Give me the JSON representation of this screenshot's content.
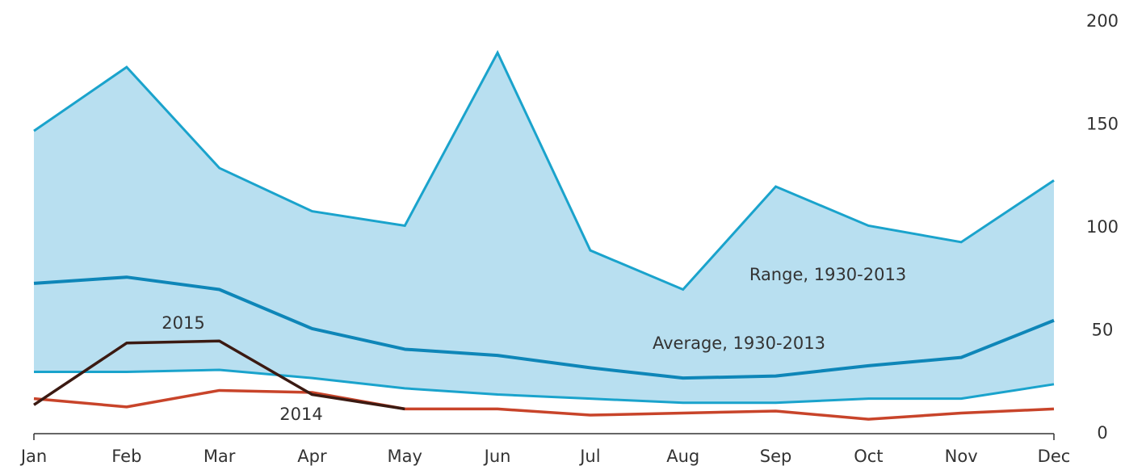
{
  "chart_data": {
    "type": "line",
    "categories": [
      "Jan",
      "Feb",
      "Mar",
      "Apr",
      "May",
      "Jun",
      "Jul",
      "Aug",
      "Sep",
      "Oct",
      "Nov",
      "Dec"
    ],
    "ylim": [
      0,
      200
    ],
    "yticks": [
      0,
      50,
      100,
      150,
      200
    ],
    "series": [
      {
        "name": "Range, 1930-2013",
        "color": "#1aa3cc",
        "fill": "#b8dff0",
        "high": [
          147,
          178,
          129,
          108,
          101,
          185,
          89,
          70,
          120,
          101,
          93,
          123
        ],
        "low": [
          30,
          30,
          31,
          27,
          22,
          19,
          17,
          15,
          15,
          17,
          17,
          24
        ]
      },
      {
        "name": "Average, 1930-2013",
        "color": "#0e86b8",
        "values": [
          73,
          76,
          70,
          51,
          41,
          38,
          32,
          27,
          28,
          33,
          37,
          55
        ]
      },
      {
        "name": "2015",
        "color": "#3b1a12",
        "values": [
          14,
          44,
          45,
          19,
          12,
          null,
          null,
          null,
          null,
          null,
          null,
          null
        ]
      },
      {
        "name": "2014",
        "color": "#c8442a",
        "values": [
          17,
          13,
          21,
          20,
          12,
          12,
          9,
          10,
          11,
          7,
          10,
          12
        ]
      }
    ]
  }
}
